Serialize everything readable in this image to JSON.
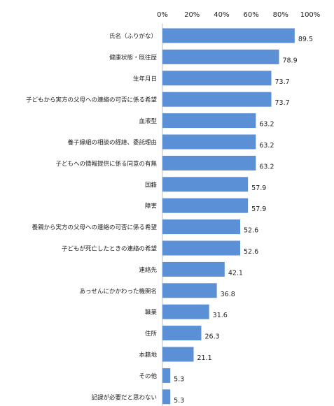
{
  "chart_data": {
    "type": "bar",
    "orientation": "horizontal",
    "x_ticks": [
      "0%",
      "20%",
      "40%",
      "60%",
      "80%",
      "100%"
    ],
    "xlim": [
      0,
      100
    ],
    "grid": false,
    "bar_color": "#5b8fd6",
    "categories": [
      "氏名（ふりがな）",
      "健康状態・既往歴",
      "生年月日",
      "子どもから実方の父母への連絡の可否に係る希望",
      "血液型",
      "養子縁組の相談の経緯、委託理由",
      "子どもへの情報提供に係る同意の有無",
      "国籍",
      "障害",
      "養親から実方の父母への連絡の可否に係る希望",
      "子どもが死亡したときの連絡の希望",
      "連絡先",
      "あっせんにかかわった機関名",
      "職業",
      "住所",
      "本籍地",
      "その他",
      "記録が必要だと思わない"
    ],
    "values": [
      89.5,
      78.9,
      73.7,
      73.7,
      63.2,
      63.2,
      63.2,
      57.9,
      57.9,
      52.6,
      52.6,
      42.1,
      36.8,
      31.6,
      26.3,
      21.1,
      5.3,
      5.3
    ],
    "value_labels": [
      "89.5",
      "78.9",
      "73.7",
      "73.7",
      "63.2",
      "63.2",
      "63.2",
      "57.9",
      "57.9",
      "52.6",
      "52.6",
      "42.1",
      "36.8",
      "31.6",
      "26.3",
      "21.1",
      "5.3",
      "5.3"
    ]
  }
}
